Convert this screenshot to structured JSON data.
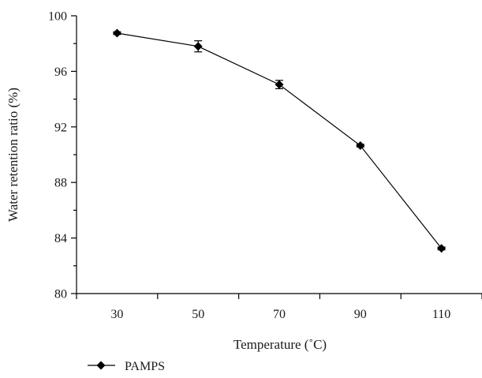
{
  "chart_data": {
    "type": "line",
    "x": [
      30,
      50,
      70,
      90,
      110
    ],
    "xlim": [
      20,
      120
    ],
    "ylim": [
      80,
      100
    ],
    "x_ticks": [
      "30",
      "50",
      "70",
      "90",
      "110"
    ],
    "y_ticks": [
      "80",
      "84",
      "88",
      "92",
      "96",
      "100"
    ],
    "xlabel": "Temperature (˚C)",
    "ylabel": "Water retention ratio (%)",
    "grid": false,
    "legend_position": "bottom-left",
    "series": [
      {
        "name": "PAMPS",
        "marker": "diamond",
        "color": "#000000",
        "values": [
          98.75,
          97.8,
          95.05,
          90.65,
          83.25
        ],
        "error": [
          0.1,
          0.4,
          0.3,
          0.1,
          0.1
        ]
      }
    ]
  }
}
